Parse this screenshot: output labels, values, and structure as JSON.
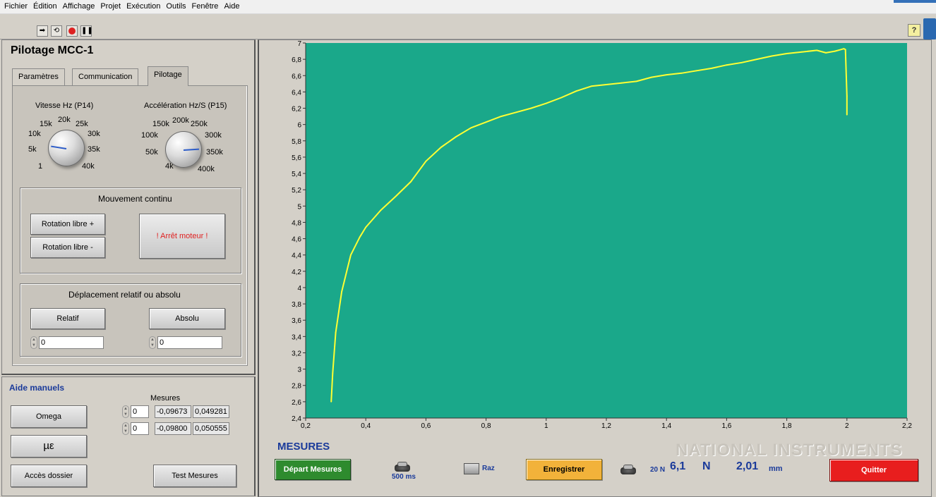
{
  "menu": [
    "Fichier",
    "Édition",
    "Affichage",
    "Projet",
    "Exécution",
    "Outils",
    "Fenêtre",
    "Aide"
  ],
  "toolbar": {
    "icons": [
      "run-arrow-icon",
      "run-continuous-icon",
      "abort-icon",
      "pause-icon"
    ],
    "help_label": "?"
  },
  "pilotage": {
    "title": "Pilotage MCC-1",
    "tabs": [
      "Paramètres",
      "Communication",
      "Pilotage"
    ],
    "active_tab": "Pilotage",
    "vitesse": {
      "label": "Vitesse Hz (P14)",
      "ticks": [
        "1",
        "5k",
        "10k",
        "15k",
        "20k",
        "25k",
        "30k",
        "35k",
        "40k"
      ],
      "value_fraction": 0.2
    },
    "acceleration": {
      "label": "Accélération Hz/S (P15)",
      "ticks": [
        "4k",
        "50k",
        "100k",
        "150k",
        "200k",
        "250k",
        "300k",
        "350k",
        "400k"
      ],
      "value_fraction": 0.82
    },
    "mouvement": {
      "title": "Mouvement continu",
      "rot_plus": "Rotation libre +",
      "rot_minus": "Rotation libre -",
      "arret": "! Arrêt moteur !"
    },
    "deplacement": {
      "title": "Déplacement relatif ou absolu",
      "relatif": "Relatif",
      "absolu": "Absolu",
      "relatif_value": "0",
      "absolu_value": "0"
    }
  },
  "aide": {
    "title": "Aide manuels",
    "omega": "Omega",
    "mu": "µε",
    "acces": "Accès dossier",
    "test": "Test Mesures",
    "mesures_label": "Mesures",
    "rows": [
      {
        "index": "0",
        "v1": "-0,09673",
        "v2": "0,049281"
      },
      {
        "index": "0",
        "v1": "-0,09800",
        "v2": "0,050555"
      }
    ]
  },
  "mesures": {
    "title": "MESURES",
    "depart": "Départ Mesures",
    "period": "500 ms",
    "raz": "Raz",
    "enregistrer": "Enregistrer",
    "range": "20 N",
    "force_value": "6,1",
    "force_unit": "N",
    "disp_value": "2,01",
    "disp_unit": "mm",
    "quitter": "Quitter",
    "watermark": "NATIONAL INSTRUMENTS"
  },
  "colors": {
    "plot_bg": "#1aa88a",
    "trace": "#ffff33",
    "depart_bg": "#2e8b2e",
    "enregistrer_bg": "#f2b23a",
    "quitter_bg": "#e81e1e",
    "mesures_title": "#1a3a9a"
  },
  "chart_data": {
    "type": "line",
    "title": "",
    "xlabel": "",
    "ylabel": "",
    "xlim": [
      0.2,
      2.2
    ],
    "ylim": [
      2.4,
      7.0
    ],
    "xticks": [
      "0,2",
      "0,4",
      "0,6",
      "0,8",
      "1",
      "1,2",
      "1,4",
      "1,6",
      "1,8",
      "2",
      "2,2"
    ],
    "yticks": [
      "2,4",
      "2,6",
      "2,8",
      "3",
      "3,2",
      "3,4",
      "3,6",
      "3,8",
      "4",
      "4,2",
      "4,4",
      "4,6",
      "4,8",
      "5",
      "5,2",
      "5,4",
      "5,6",
      "5,8",
      "6",
      "6,2",
      "6,4",
      "6,6",
      "6,8",
      "7"
    ],
    "grid": false,
    "series": [
      {
        "x": [
          0.285,
          0.29,
          0.3,
          0.32,
          0.35,
          0.38,
          0.4,
          0.45,
          0.5,
          0.55,
          0.6,
          0.65,
          0.7,
          0.75,
          0.8,
          0.85,
          0.9,
          0.95,
          1.0,
          1.05,
          1.1,
          1.15,
          1.2,
          1.25,
          1.3,
          1.35,
          1.4,
          1.45,
          1.5,
          1.55,
          1.6,
          1.65,
          1.7,
          1.75,
          1.8,
          1.85,
          1.9,
          1.93,
          1.96,
          1.98,
          1.99,
          1.995,
          1.997,
          2.0,
          2.0
        ],
        "y": [
          2.6,
          2.95,
          3.45,
          3.95,
          4.4,
          4.62,
          4.74,
          4.95,
          5.12,
          5.3,
          5.55,
          5.72,
          5.85,
          5.96,
          6.03,
          6.1,
          6.15,
          6.2,
          6.26,
          6.33,
          6.41,
          6.47,
          6.49,
          6.51,
          6.53,
          6.58,
          6.61,
          6.63,
          6.66,
          6.69,
          6.73,
          6.76,
          6.8,
          6.84,
          6.87,
          6.89,
          6.91,
          6.88,
          6.9,
          6.92,
          6.93,
          6.92,
          6.7,
          6.35,
          6.12
        ]
      }
    ]
  }
}
